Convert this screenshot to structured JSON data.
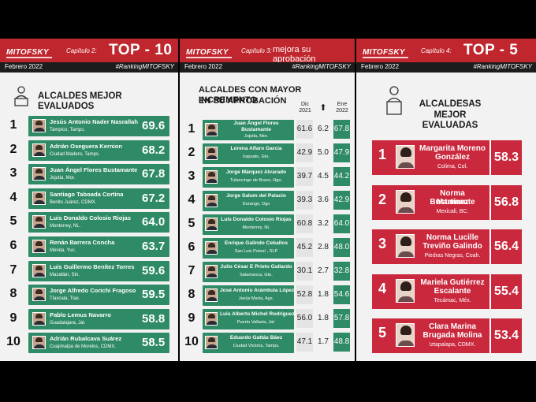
{
  "brand": {
    "name": "MITOFSKY"
  },
  "panel1": {
    "chapter": "Capítulo 2:",
    "headline": "TOP - 10",
    "date": "Febrero 2022",
    "hashtag": "#RankingMITOFSKY",
    "title_l1": "ALCALDES MEJOR EVALUADOS",
    "items": [
      {
        "rank": "1",
        "name": "Jesús Antonio Nader Nasrallah",
        "loc": "Tampico, Tamps.",
        "score": "69.6"
      },
      {
        "rank": "2",
        "name": "Adrián Oseguera Kernion",
        "loc": "Ciudad Madero, Tamps.",
        "score": "68.2"
      },
      {
        "rank": "3",
        "name": "Juan Ángel Flores Bustamante",
        "loc": "Jojutla, Mor.",
        "score": "67.8"
      },
      {
        "rank": "4",
        "name": "Santiago Taboada Cortina",
        "loc": "Benito Juárez, CDMX.",
        "score": "67.2"
      },
      {
        "rank": "5",
        "name": "Luis Donaldo Colosio Riojas",
        "loc": "Monterrey, NL.",
        "score": "64.0"
      },
      {
        "rank": "6",
        "name": "Renán Barrera Concha",
        "loc": "Mérida, Yuc.",
        "score": "63.7"
      },
      {
        "rank": "7",
        "name": "Luis Guillermo Benítez Torres",
        "loc": "Mazatlán, Sin.",
        "score": "59.6"
      },
      {
        "rank": "8",
        "name": "Jorge Alfredo Corichi Fragoso",
        "loc": "Tlaxcala, Tlax.",
        "score": "59.5"
      },
      {
        "rank": "9",
        "name": "Pablo Lemus Navarro",
        "loc": "Guadalajara, Jal.",
        "score": "58.8"
      },
      {
        "rank": "10",
        "name": "Adrián Rubalcava Suárez",
        "loc": "Cuajimalpa de Morelos, CDMX.",
        "score": "58.5"
      }
    ]
  },
  "panel2": {
    "chapter": "Capítulo 3:",
    "headline": "mejora su aprobación",
    "date": "Febrero 2022",
    "hashtag": "#RankingMITOFSKY",
    "title_l1": "ALCALDES CON MAYOR INCREMENTO",
    "title_l2": "EN SU APROBACIÓN",
    "col_dic_l1": "Dic",
    "col_dic_l2": "2021",
    "col_arrow": "⬆",
    "col_ene_l1": "Ene",
    "col_ene_l2": "2022",
    "items": [
      {
        "rank": "1",
        "name_l1": "Juan Ángel Flores",
        "name_l2": "Bustamante",
        "loc": "Jojutla, Mor.",
        "dic": "61.6",
        "delta": "6.2",
        "ene": "67.8"
      },
      {
        "rank": "2",
        "name_l1": "Lorena Alfaro García",
        "name_l2": "",
        "loc": "Irapuato, Gto.",
        "dic": "42.9",
        "delta": "5.0",
        "ene": "47.9"
      },
      {
        "rank": "3",
        "name_l1": "Jorge Márquez Alvarado",
        "name_l2": "",
        "loc": "Tulancingo de Bravo, Hgo.",
        "dic": "39.7",
        "delta": "4.5",
        "ene": "44.2"
      },
      {
        "rank": "4",
        "name_l1": "Jorge Salum del Palacio",
        "name_l2": "",
        "loc": "Durango, Dgo",
        "dic": "39.3",
        "delta": "3.6",
        "ene": "42.9"
      },
      {
        "rank": "5",
        "name_l1": "Luis Donaldo Colosio Riojas",
        "name_l2": "",
        "loc": "Monterrey, NL",
        "dic": "60.8",
        "delta": "3.2",
        "ene": "64.0"
      },
      {
        "rank": "6",
        "name_l1": "Enrique Galindo Ceballos",
        "name_l2": "",
        "loc": "San Luis Potosí , SLP",
        "dic": "45.2",
        "delta": "2.8",
        "ene": "48.0"
      },
      {
        "rank": "7",
        "name_l1": "Julio César E Prieto Gallardo",
        "name_l2": "",
        "loc": "Salamanca, Gto.",
        "dic": "30.1",
        "delta": "2.7",
        "ene": "32.8"
      },
      {
        "rank": "8",
        "name_l1": "José Antonio Arámbula López",
        "name_l2": "",
        "loc": "Jesús María, Ags.",
        "dic": "52.8",
        "delta": "1.8",
        "ene": "54.6"
      },
      {
        "rank": "9",
        "name_l1": "Luis Alberto Michel Rodríguez",
        "name_l2": "",
        "loc": "Puerto Vallarta, Jal.",
        "dic": "56.0",
        "delta": "1.8",
        "ene": "57.8"
      },
      {
        "rank": "10",
        "name_l1": "Eduardo Gattás Báez",
        "name_l2": "",
        "loc": "Ciudad Victoria, Tamps.",
        "dic": "47.1",
        "delta": "1.7",
        "ene": "48.8"
      }
    ]
  },
  "panel3": {
    "chapter": "Capítulo 4:",
    "headline": "TOP - 5",
    "date": "Febrero 2022",
    "hashtag": "#RankingMITOFSKY",
    "title_l1": "ALCALDESAS",
    "title_l2": "MEJOR EVALUADAS",
    "items": [
      {
        "rank": "1",
        "name_l1": "Margarita Moreno",
        "name_l2": "González",
        "loc": "Colima, Col.",
        "score": "58.3"
      },
      {
        "rank": "2",
        "name_l1": "Norma Bustamante",
        "name_l2": "Martínez",
        "loc": "Mexicali, BC.",
        "score": "56.8"
      },
      {
        "rank": "3",
        "name_l1": "Norma Lucille",
        "name_l2": "Treviño Galindo",
        "loc": "Piedras Negras, Coah.",
        "score": "56.4"
      },
      {
        "rank": "4",
        "name_l1": "Mariela Gutiérrez",
        "name_l2": "Escalante",
        "loc": "Tecámac, Méx.",
        "score": "55.4"
      },
      {
        "rank": "5",
        "name_l1": "Clara Marina",
        "name_l2": "Brugada Molina",
        "loc": "Iztapalapa, CDMX.",
        "score": "53.4"
      }
    ]
  }
}
